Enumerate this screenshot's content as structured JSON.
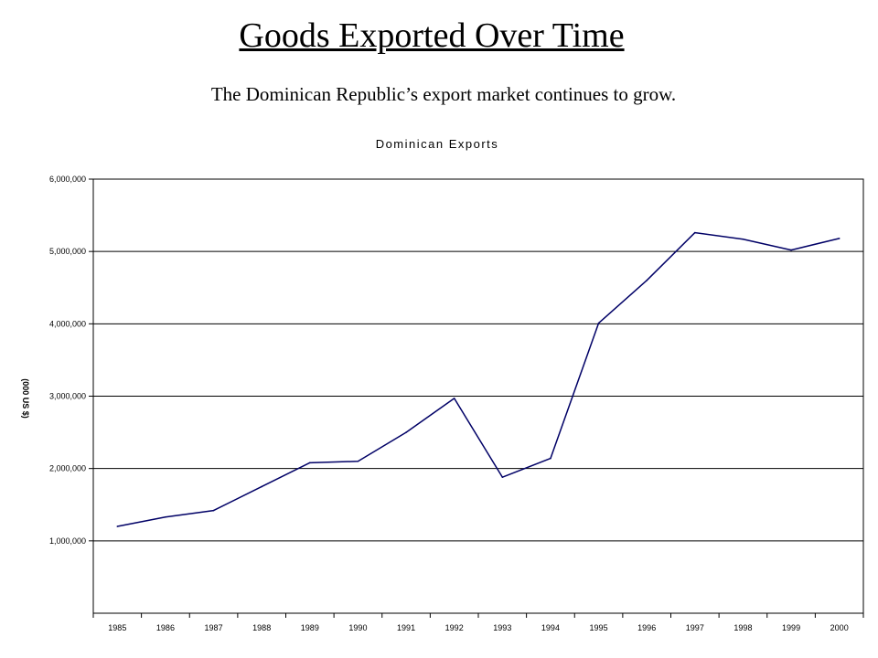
{
  "slide": {
    "title": "Goods Exported Over Time",
    "subtitle": "The Dominican Republic’s export market continues to grow."
  },
  "chart_data": {
    "type": "line",
    "title": "Dominican Exports",
    "xlabel": "",
    "ylabel": "(000 US $)",
    "x": [
      "1985",
      "1986",
      "1987",
      "1988",
      "1989",
      "1990",
      "1991",
      "1992",
      "1993",
      "1994",
      "1995",
      "1996",
      "1997",
      "1998",
      "1999",
      "2000"
    ],
    "series": [
      {
        "values": [
          1200000,
          1330000,
          1420000,
          1750000,
          2080000,
          2100000,
          2500000,
          2970000,
          1880000,
          2140000,
          4010000,
          4600000,
          5260000,
          5170000,
          5020000,
          5180000
        ],
        "color": "#000066"
      }
    ],
    "ylim": [
      0,
      6000000
    ],
    "yticks": [
      1000000,
      2000000,
      3000000,
      4000000,
      5000000,
      6000000
    ],
    "ytick_labels": [
      "1,000,000",
      "2,000,000",
      "3,000,000",
      "4,000,000",
      "5,000,000",
      "6,000,000"
    ],
    "grid": true,
    "legend": "none"
  }
}
